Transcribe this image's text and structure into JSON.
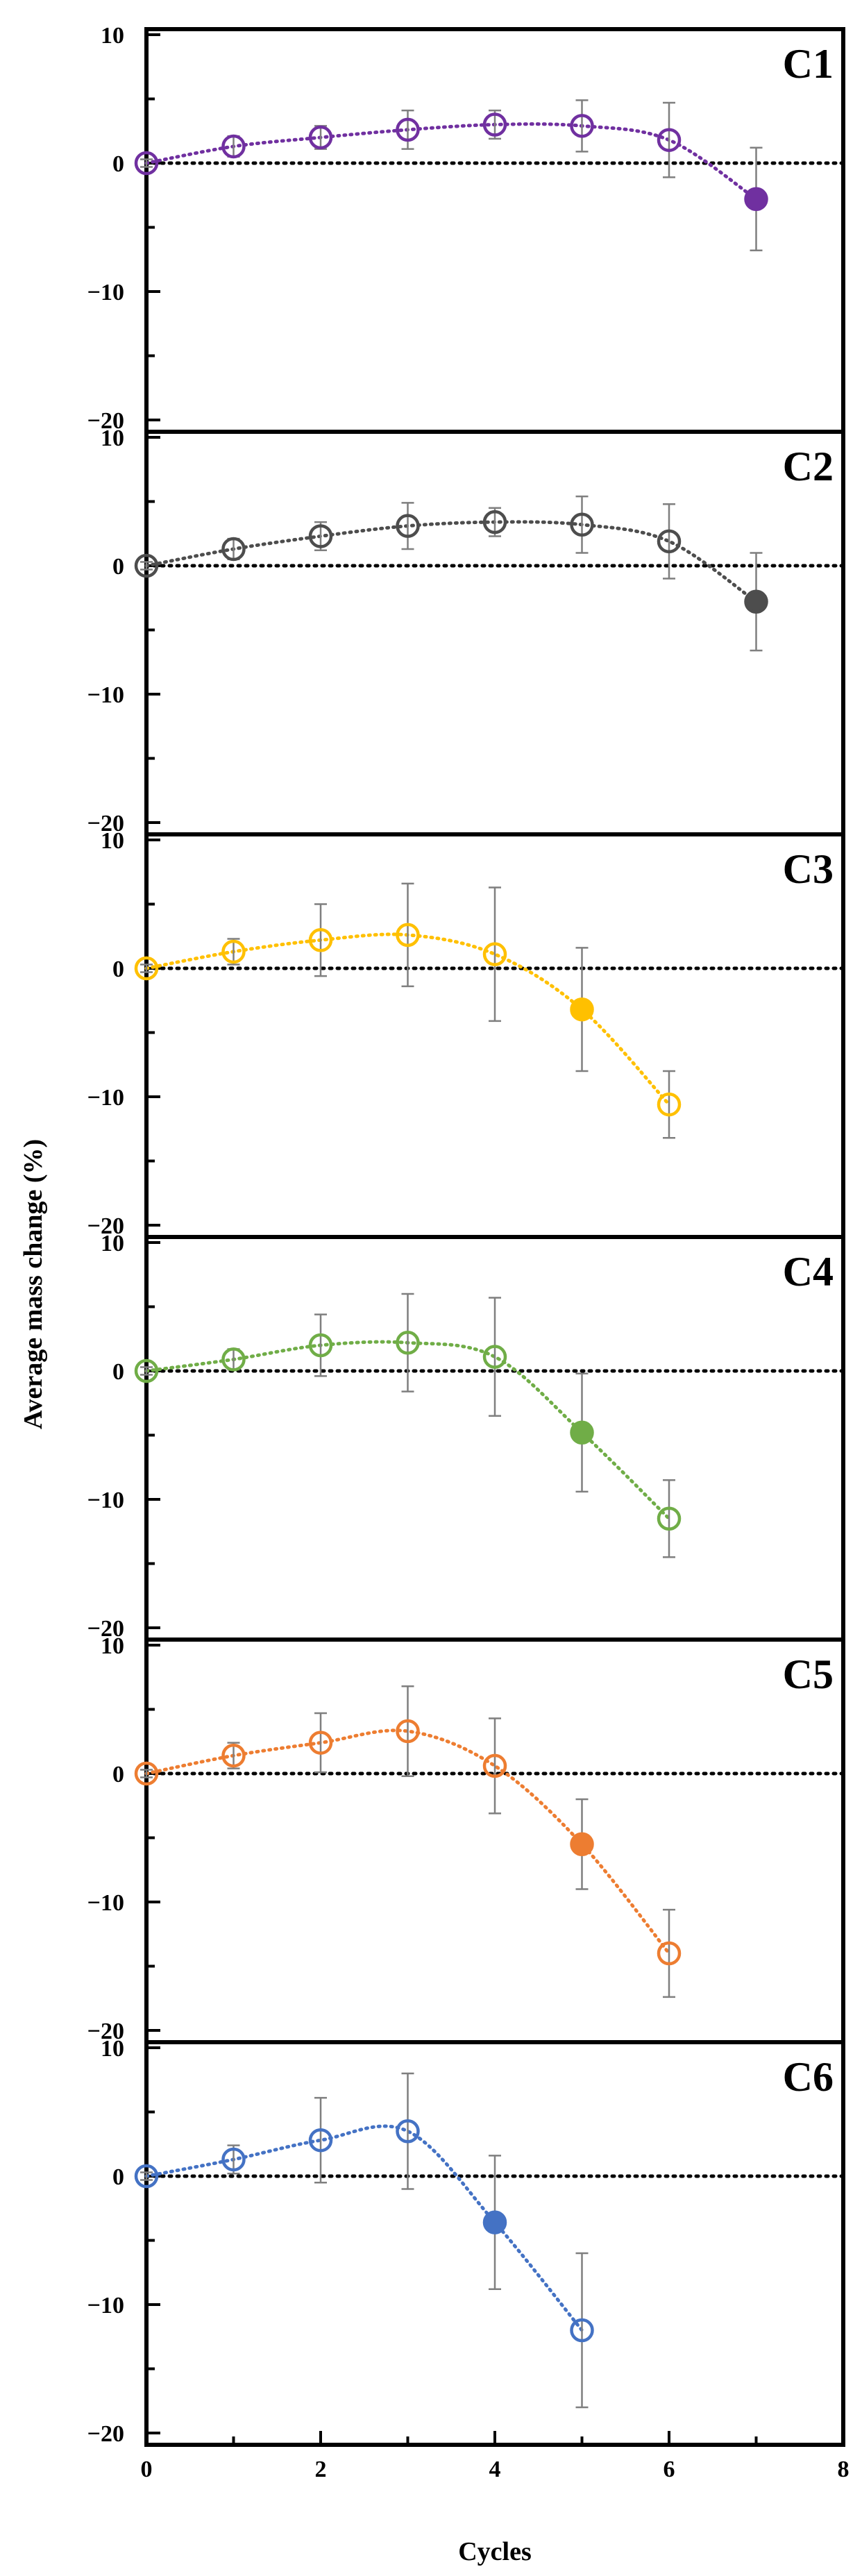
{
  "chart_data": {
    "type": "scatter",
    "xlabel": "Cycles",
    "ylabel": "Average mass change (%)",
    "xlim": [
      0,
      8
    ],
    "ylim": [
      -20,
      10
    ],
    "xticks": [
      0,
      2,
      4,
      6,
      8
    ],
    "yticks": [
      10,
      0,
      -10,
      -20
    ],
    "zero_line": "dotted",
    "panels": [
      {
        "label": "C1",
        "color": "#7030a0",
        "x": [
          0,
          1,
          2,
          3,
          4,
          5,
          6,
          7
        ],
        "y": [
          0,
          1.3,
          2.0,
          2.6,
          3.0,
          2.9,
          1.8,
          -2.8
        ],
        "err": [
          0.3,
          0.8,
          0.9,
          1.5,
          1.1,
          2.0,
          2.9,
          4.0
        ],
        "filled_index": 7
      },
      {
        "label": "C2",
        "color": "#4d4d4d",
        "x": [
          0,
          1,
          2,
          3,
          4,
          5,
          6,
          7
        ],
        "y": [
          0,
          1.3,
          2.3,
          3.1,
          3.4,
          3.2,
          1.9,
          -2.8
        ],
        "err": [
          0.3,
          0.8,
          1.1,
          1.8,
          1.1,
          2.2,
          2.9,
          3.8
        ],
        "filled_index": 7
      },
      {
        "label": "C3",
        "color": "#ffc000",
        "x": [
          0,
          1,
          2,
          3,
          4,
          5,
          6
        ],
        "y": [
          0,
          1.3,
          2.2,
          2.6,
          1.1,
          -3.2,
          -10.6
        ],
        "err": [
          0.3,
          1.0,
          2.8,
          4.0,
          5.2,
          4.8,
          2.6
        ],
        "filled_index": 5
      },
      {
        "label": "C4",
        "color": "#70ad47",
        "x": [
          0,
          1,
          2,
          3,
          4,
          5,
          6
        ],
        "y": [
          0,
          0.9,
          2.0,
          2.2,
          1.1,
          -4.8,
          -11.5
        ],
        "err": [
          0.3,
          0.8,
          2.4,
          3.8,
          4.6,
          4.6,
          3.0
        ],
        "filled_index": 5
      },
      {
        "label": "C5",
        "color": "#ed7d31",
        "x": [
          0,
          1,
          2,
          3,
          4,
          5,
          6
        ],
        "y": [
          0,
          1.4,
          2.4,
          3.3,
          0.6,
          -5.5,
          -14.0
        ],
        "err": [
          0.3,
          1.0,
          2.3,
          3.5,
          3.7,
          3.5,
          3.4
        ],
        "filled_index": 5
      },
      {
        "label": "C6",
        "color": "#4472c4",
        "x": [
          0,
          1,
          2,
          3,
          4,
          5
        ],
        "y": [
          0,
          1.3,
          2.8,
          3.5,
          -3.6,
          -12.0
        ],
        "err": [
          0.3,
          1.1,
          3.3,
          4.5,
          5.2,
          6.0
        ],
        "filled_index": 4
      }
    ]
  }
}
